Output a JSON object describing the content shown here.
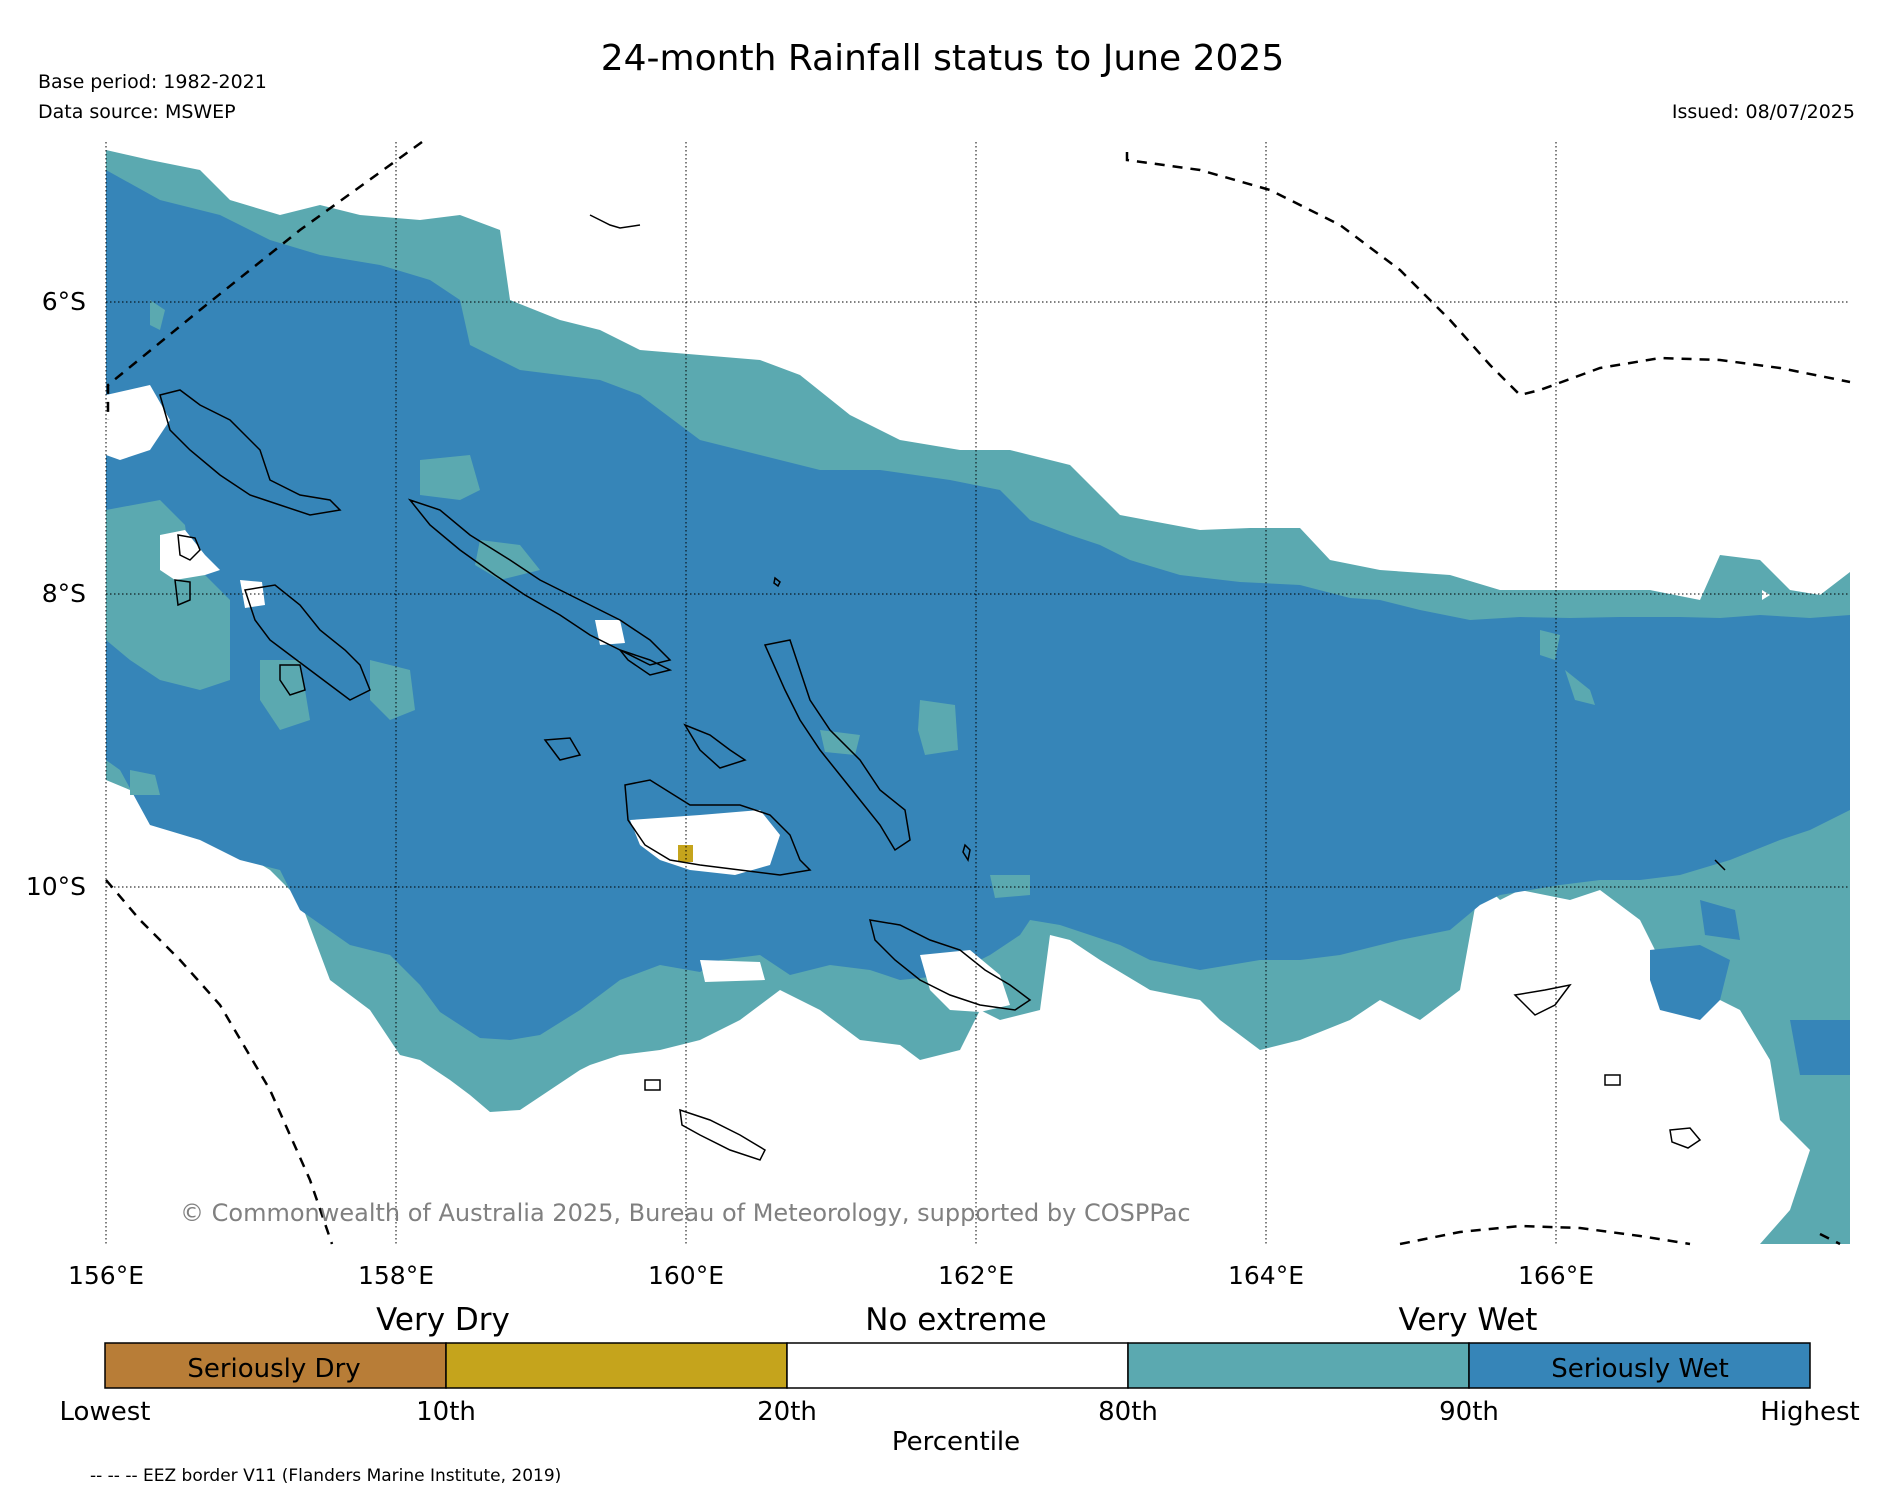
{
  "header": {
    "title": "24-month Rainfall status to June 2025",
    "base_period": "Base period: 1982-2021",
    "data_source": "Data source: MSWEP",
    "issued": "Issued: 08/07/2025"
  },
  "map": {
    "lat_labels": [
      "6°S",
      "8°S",
      "10°S"
    ],
    "lon_labels": [
      "156°E",
      "158°E",
      "160°E",
      "162°E",
      "164°E",
      "166°E"
    ],
    "copyright": "© Commonwealth of Australia 2025, Bureau of Meteorology, supported by COSPPac"
  },
  "legend": {
    "categories": [
      "Very Dry",
      "No extreme",
      "Very Wet"
    ],
    "segments": [
      {
        "label": "Seriously Dry",
        "color": "#b87d37"
      },
      {
        "label": "",
        "color": "#c5a41c"
      },
      {
        "label": "",
        "color": "#ffffff"
      },
      {
        "label": "",
        "color": "#5ba9b0"
      },
      {
        "label": "Seriously Wet",
        "color": "#3685b8"
      }
    ],
    "ticks": [
      "Lowest",
      "10th",
      "20th",
      "80th",
      "90th",
      "Highest"
    ],
    "axis_label": "Percentile"
  },
  "footer": {
    "eez_note": "-- -- -- EEZ border V11 (Flanders Marine Institute, 2019)"
  },
  "colors": {
    "seriously_wet": "#3685b8",
    "very_wet": "#5ba9b0",
    "very_dry": "#c5a41c",
    "seriously_dry": "#b87d37",
    "no_extreme": "#ffffff"
  }
}
